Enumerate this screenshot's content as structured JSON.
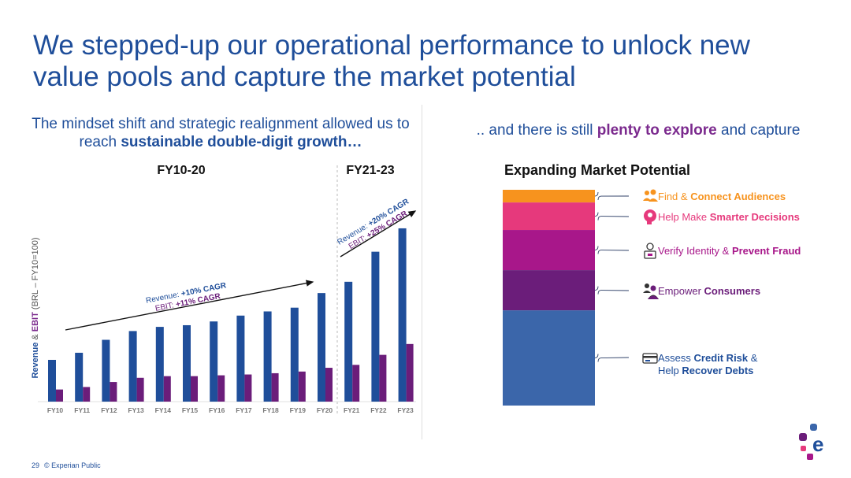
{
  "slide": {
    "title": "We stepped-up our operational performance to unlock new value pools and capture the market potential",
    "left_subtitle_pre": "The mindset shift and strategic realignment allowed us to reach ",
    "left_subtitle_bold": "sustainable double-digit growth…",
    "right_subtitle_pre": ".. and there is still ",
    "right_subtitle_bold": "plenty to explore",
    "right_subtitle_post": " and capture",
    "footer_page": "29",
    "footer_text": "© Experian Public",
    "logo_letter": "e"
  },
  "chart_data": [
    {
      "type": "bar",
      "title": "",
      "ylabel_parts": [
        "Revenue",
        " & ",
        "EBIT",
        " (BRL – FY10=100)"
      ],
      "period_labels": [
        "FY10-20",
        "FY21-23"
      ],
      "categories": [
        "FY10",
        "FY11",
        "FY12",
        "FY13",
        "FY14",
        "FY15",
        "FY16",
        "FY17",
        "FY18",
        "FY19",
        "FY20",
        "FY21",
        "FY22",
        "FY23"
      ],
      "series": [
        {
          "name": "Revenue",
          "color": "#1f4e9a",
          "values": [
            100,
            117,
            148,
            169,
            179,
            183,
            192,
            206,
            216,
            225,
            260,
            287,
            359,
            415
          ]
        },
        {
          "name": "EBIT",
          "color": "#6b1d7a",
          "values": [
            29,
            35,
            47,
            57,
            61,
            61,
            63,
            65,
            68,
            72,
            81,
            88,
            112,
            138
          ]
        }
      ],
      "ylim": [
        0,
        430
      ],
      "annotations": [
        {
          "revenue_label": "Revenue: ",
          "revenue_value": "+10% CAGR",
          "ebit_label": "EBIT: ",
          "ebit_value": "+11% CAGR"
        },
        {
          "revenue_label": "Revenue: ",
          "revenue_value": "+20% CAGR",
          "ebit_label": "EBIT: ",
          "ebit_value": "+25% CAGR"
        }
      ]
    },
    {
      "type": "bar",
      "title": "Expanding Market Potential",
      "stacked": true,
      "segments": [
        {
          "pre": "Find & ",
          "bold": "Connect Audiences",
          "line2": "",
          "line2_bold": "",
          "value": 6,
          "color": "#f7931e",
          "text_color": "#f7931e",
          "icon": "people-icon"
        },
        {
          "pre": "Help Make ",
          "bold": "Smarter Decisions",
          "line2": "",
          "line2_bold": "",
          "value": 13,
          "color": "#e6397c",
          "text_color": "#e6397c",
          "icon": "brain-icon"
        },
        {
          "pre": "Verify Identity & ",
          "bold": "Prevent Fraud",
          "line2": "",
          "line2_bold": "",
          "value": 19,
          "color": "#a8178a",
          "text_color": "#a8178a",
          "icon": "person-laptop-icon"
        },
        {
          "pre": "Empower ",
          "bold": "Consumers",
          "line2": "",
          "line2_bold": "",
          "value": 19,
          "color": "#6b1d7a",
          "text_color": "#6b1d7a",
          "icon": "consumers-icon"
        },
        {
          "pre": "Assess ",
          "bold": "Credit Risk",
          "post": " &",
          "line2": "Help ",
          "line2_bold": "Recover Debts",
          "value": 45,
          "color": "#3b66aa",
          "text_color": "#1f4e9a",
          "icon": "credit-card-icon"
        }
      ]
    }
  ]
}
